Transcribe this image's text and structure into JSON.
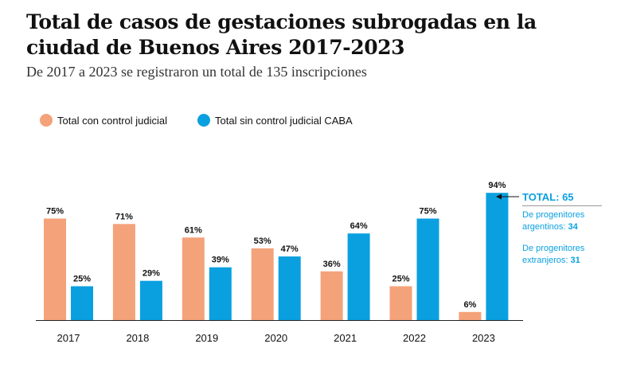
{
  "title": "Total de casos de gestaciones subrogadas en la ciudad de Buenos Aires 2017-2023",
  "subtitle": "De 2017 a 2023 se registraron un total de 135 inscripciones",
  "colors": {
    "con_control": "#f4a27a",
    "sin_control": "#0aa0e0",
    "axis": "#222222",
    "annotation": "#0aa0e0"
  },
  "legend": [
    {
      "label": "Total con control judicial",
      "color": "#f4a27a"
    },
    {
      "label": "Total sin control judicial CABA",
      "color": "#0aa0e0"
    }
  ],
  "annotation": {
    "total": "TOTAL: 65",
    "argentinos_label": [
      "De progenitores",
      "argentinos: "
    ],
    "argentinos_value": "34",
    "extranjeros_label": [
      "De progenitores",
      "extranjeros: "
    ],
    "extranjeros_value": "31"
  },
  "chart_data": {
    "type": "bar",
    "categories": [
      "2017",
      "2018",
      "2019",
      "2020",
      "2021",
      "2022",
      "2023"
    ],
    "series": [
      {
        "name": "Total con control judicial",
        "values": [
          75,
          71,
          61,
          53,
          36,
          25,
          6
        ]
      },
      {
        "name": "Total sin control judicial CABA",
        "values": [
          25,
          29,
          39,
          47,
          64,
          75,
          94
        ]
      }
    ],
    "ylim": [
      0,
      100
    ],
    "value_suffix": "%",
    "legend_position": "top-left",
    "grid": false
  }
}
